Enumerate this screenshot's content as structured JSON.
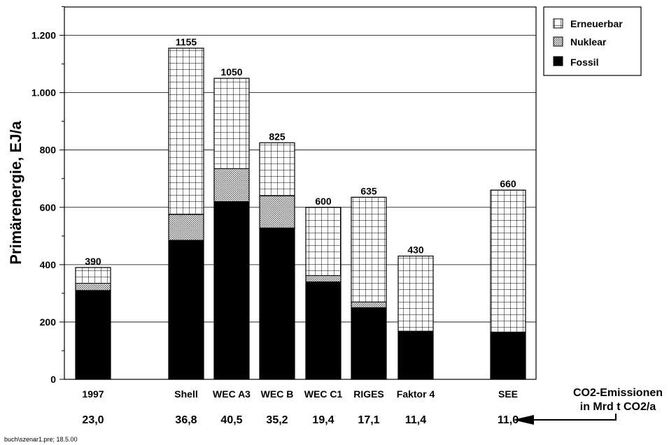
{
  "chart_data": {
    "type": "bar",
    "stacked": true,
    "ylabel": "Primärenergie, EJ/a",
    "ylim": [
      0,
      1300
    ],
    "yticks": [
      0,
      200,
      400,
      600,
      800,
      1000,
      1200
    ],
    "ytick_labels": [
      "0",
      "200",
      "400",
      "600",
      "800",
      "1.000",
      "1.200"
    ],
    "grid": true,
    "legend_position": "top-right",
    "categories": [
      "1997",
      "Shell",
      "WEC A3",
      "WEC B",
      "WEC C1",
      "RIGES",
      "Faktor 4",
      "SEE"
    ],
    "totals": [
      390,
      1155,
      1050,
      825,
      600,
      635,
      430,
      660
    ],
    "total_labels": [
      "390",
      "1155",
      "1050",
      "825",
      "600",
      "635",
      "430",
      "660"
    ],
    "series": [
      {
        "name": "Fossil",
        "pattern": "solid",
        "color": "#000000",
        "values": [
          310,
          485,
          620,
          528,
          340,
          250,
          168,
          165
        ]
      },
      {
        "name": "Nuklear",
        "pattern": "dotted",
        "color": "#bbbbbb",
        "values": [
          25,
          90,
          115,
          112,
          22,
          20,
          0,
          0
        ]
      },
      {
        "name": "Erneuerbar",
        "pattern": "grid",
        "color": "#ffffff",
        "values": [
          55,
          580,
          315,
          185,
          238,
          365,
          262,
          495
        ]
      }
    ],
    "emissions": [
      "23,0",
      "36,8",
      "40,5",
      "35,2",
      "19,4",
      "17,1",
      "11,4",
      "11,0"
    ],
    "annotation": {
      "line1": "CO2-Emissionen",
      "line2": "in Mrd t CO2/a"
    },
    "footnote": "buch\\szenar1.pre; 18.5.00"
  }
}
